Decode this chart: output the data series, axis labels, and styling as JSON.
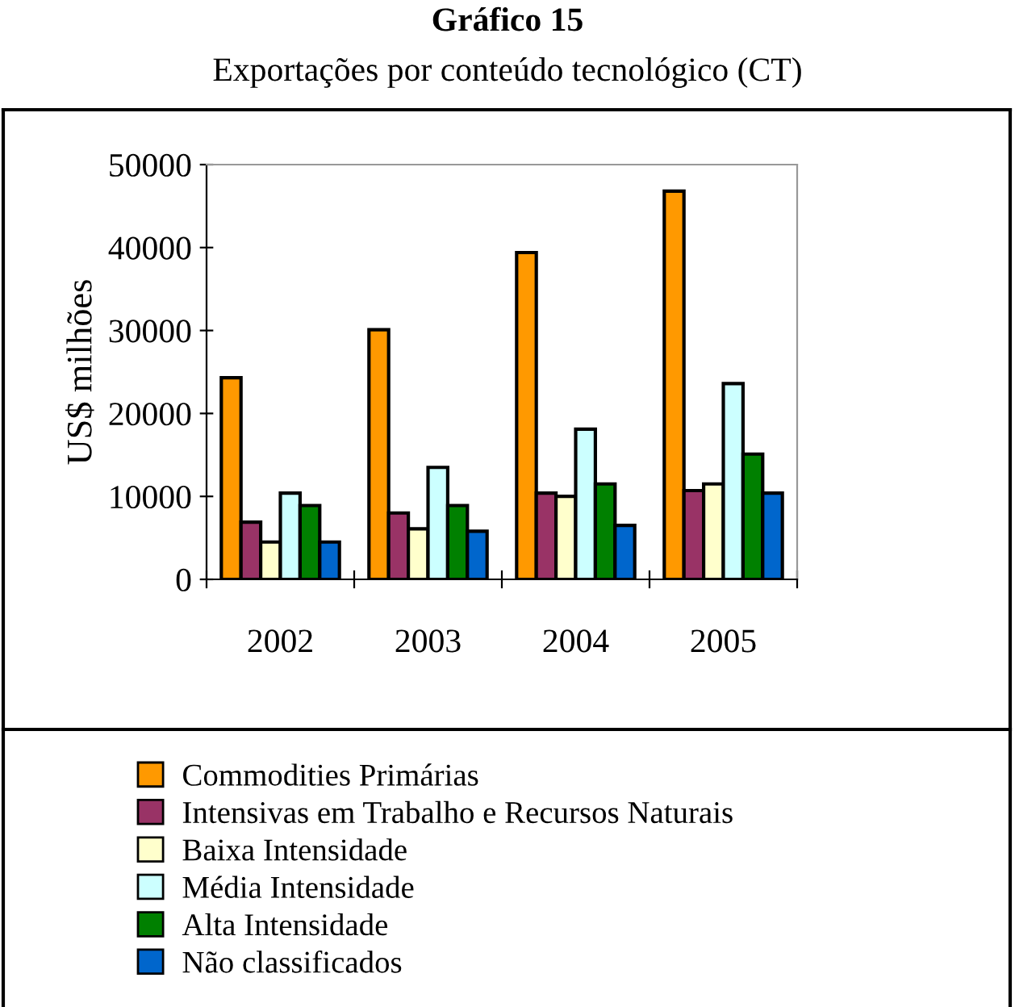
{
  "chart_data": {
    "type": "bar",
    "title": "Gráfico 15",
    "subtitle": "Exportações por conteúdo tecnológico (CT)",
    "ylabel": "US$ milhões",
    "categories": [
      "2002",
      "2003",
      "2004",
      "2005"
    ],
    "series": [
      {
        "name": "Commodities Primárias",
        "color": "#ff9900",
        "values": [
          24300,
          30100,
          39400,
          46800
        ]
      },
      {
        "name": "Intensivas em Trabalho e Recursos Naturais",
        "color": "#993366",
        "values": [
          6900,
          8000,
          10400,
          10700
        ]
      },
      {
        "name": "Baixa Intensidade",
        "color": "#ffffcc",
        "values": [
          4500,
          6100,
          10000,
          11500
        ]
      },
      {
        "name": "Média Intensidade",
        "color": "#ccffff",
        "values": [
          10400,
          13500,
          18100,
          23600
        ]
      },
      {
        "name": "Alta Intensidade",
        "color": "#008000",
        "values": [
          8900,
          8900,
          11500,
          15100
        ]
      },
      {
        "name": "Não classificados",
        "color": "#0066cc",
        "values": [
          4500,
          5800,
          6500,
          10400
        ]
      }
    ],
    "ylim": [
      0,
      50000
    ],
    "yticks": [
      0,
      10000,
      20000,
      30000,
      40000,
      50000
    ],
    "grid": false,
    "legend": "bottom"
  }
}
